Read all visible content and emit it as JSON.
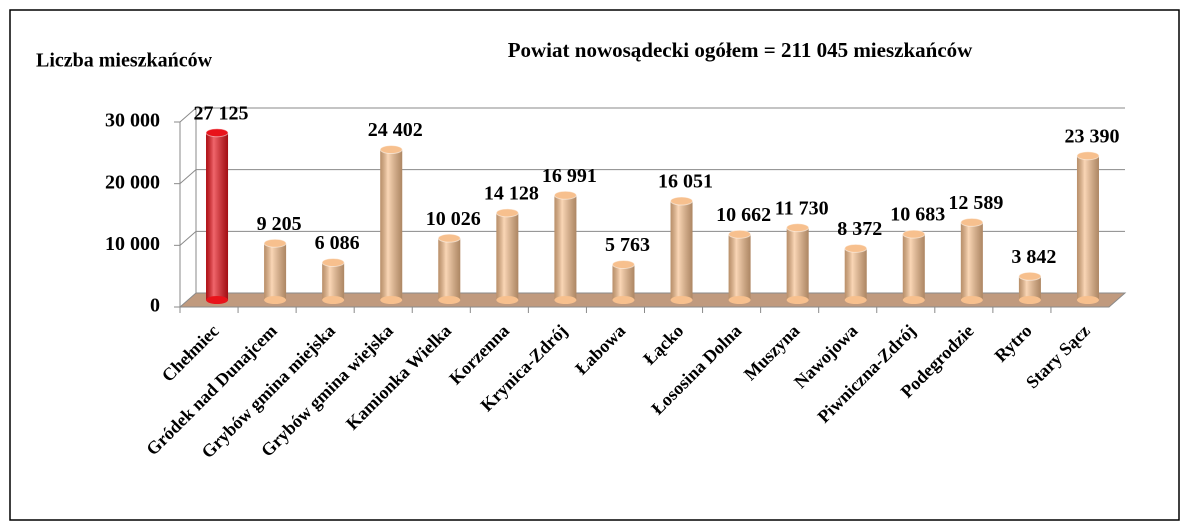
{
  "chart_data": {
    "type": "bar",
    "title": "Powiat nowosądecki ogółem = 211 045 mieszkańców",
    "y_label": "Liczba mieszkańców",
    "categories": [
      "Chełmiec",
      "Gródek nad Dunajcem",
      "Grybów gmina miejska",
      "Grybów gmina wiejska",
      "Kamionka Wielka",
      "Korzenna",
      "Krynica-Zdrój",
      "Łabowa",
      "Łącko",
      "Łososina Dolna",
      "Muszyna",
      "Nawojowa",
      "Piwniczna-Zdrój",
      "Podegrodzie",
      "Rytro",
      "Stary Sącz"
    ],
    "values": [
      27125,
      9205,
      6086,
      24402,
      10026,
      14128,
      16991,
      5763,
      16051,
      10662,
      11730,
      8372,
      10683,
      12589,
      3842,
      23390
    ],
    "value_labels": [
      "27 125",
      "9 205",
      "6 086",
      "24 402",
      "10 026",
      "14 128",
      "16 991",
      "5 763",
      "16 051",
      "10 662",
      "11 730",
      "8 372",
      "10 683",
      "12 589",
      "3 842",
      "23 390"
    ],
    "colors": [
      "#e8131b",
      "#f7c08e",
      "#f7c08e",
      "#f7c08e",
      "#f7c08e",
      "#f7c08e",
      "#f7c08e",
      "#f7c08e",
      "#f7c08e",
      "#f7c08e",
      "#f7c08e",
      "#f7c08e",
      "#f7c08e",
      "#f7c08e",
      "#f7c08e",
      "#f7c08e"
    ],
    "ylim": [
      0,
      30000
    ],
    "yticks": [
      {
        "value": 0,
        "label": "0"
      },
      {
        "value": 10000,
        "label": "10 000"
      },
      {
        "value": 20000,
        "label": "20 000"
      },
      {
        "value": 30000,
        "label": "30 000"
      }
    ],
    "grid": true
  }
}
